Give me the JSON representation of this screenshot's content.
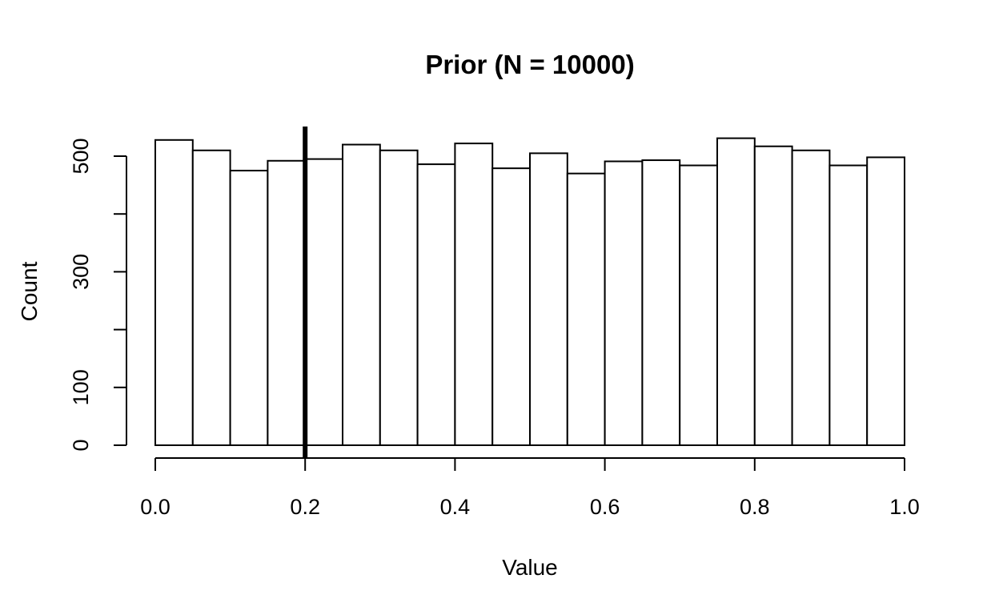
{
  "chart_data": {
    "type": "bar",
    "title": "Prior (N = 10000)",
    "xlabel": "Value",
    "ylabel": "Count",
    "xlim": [
      0.0,
      1.0
    ],
    "ylim": [
      0,
      500
    ],
    "bin_width": 0.05,
    "bin_starts": [
      0.0,
      0.05,
      0.1,
      0.15,
      0.2,
      0.25,
      0.3,
      0.35,
      0.4,
      0.45,
      0.5,
      0.55,
      0.6,
      0.65,
      0.7,
      0.75,
      0.8,
      0.85,
      0.9,
      0.95
    ],
    "values": [
      528,
      510,
      475,
      492,
      495,
      520,
      510,
      486,
      522,
      479,
      505,
      470,
      491,
      493,
      484,
      531,
      517,
      510,
      484,
      498
    ],
    "x_ticks": [
      0.0,
      0.2,
      0.4,
      0.6,
      0.8,
      1.0
    ],
    "x_tick_labels": [
      "0.0",
      "0.2",
      "0.4",
      "0.6",
      "0.8",
      "1.0"
    ],
    "y_ticks": [
      0,
      100,
      200,
      300,
      400,
      500
    ],
    "y_tick_labels": [
      "0",
      "100",
      "",
      "300",
      "",
      "500"
    ],
    "reference_line_x": 0.2,
    "grid": false
  }
}
